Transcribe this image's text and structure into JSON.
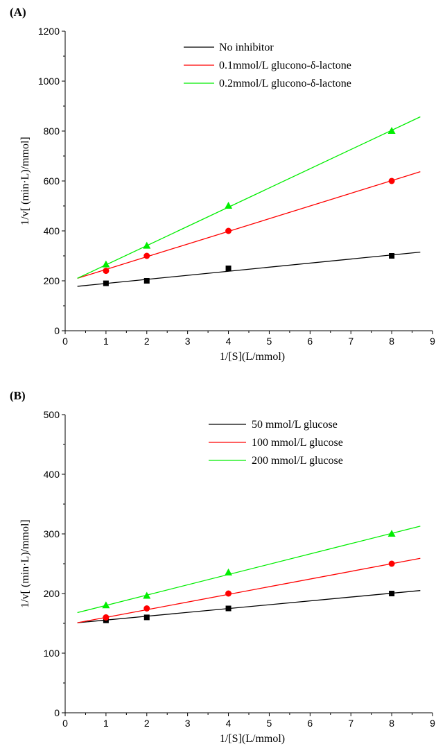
{
  "chart_data": [
    {
      "panel_label": "(A)",
      "type": "scatter",
      "xlabel": "1/[S](L/mmol)",
      "ylabel": "1/v[ (min·L)/mmol]",
      "xlim": [
        0,
        9
      ],
      "ylim": [
        0,
        1200
      ],
      "xticks": [
        0,
        1,
        2,
        3,
        4,
        5,
        6,
        7,
        8,
        9
      ],
      "yticks": [
        0,
        200,
        400,
        600,
        800,
        1000,
        1200
      ],
      "grid": false,
      "legend_position": "top-right",
      "series": [
        {
          "name": "No  inhibitor",
          "color": "#000000",
          "marker": "square",
          "x": [
            1,
            2,
            4,
            8
          ],
          "y": [
            190,
            200,
            250,
            300
          ],
          "fit": {
            "x": [
              0.3,
              8.7
            ],
            "y": [
              178,
              315
            ]
          }
        },
        {
          "name": "0.1mmol/L  glucono-δ-lactone",
          "color": "#ff0000",
          "marker": "circle",
          "x": [
            1,
            2,
            4,
            8
          ],
          "y": [
            240,
            300,
            400,
            600
          ],
          "fit": {
            "x": [
              0.3,
              8.7
            ],
            "y": [
              210,
              637
            ]
          }
        },
        {
          "name": "0.2mmol/L  glucono-δ-lactone",
          "color": "#00ee00",
          "marker": "triangle",
          "x": [
            1,
            2,
            4,
            8
          ],
          "y": [
            265,
            340,
            500,
            800
          ],
          "fit": {
            "x": [
              0.3,
              8.7
            ],
            "y": [
              210,
              857
            ]
          }
        }
      ]
    },
    {
      "panel_label": "(B)",
      "type": "scatter",
      "xlabel": "1/[S](L/mmol)",
      "ylabel": "1/v[ (min·L)/mmol]",
      "xlim": [
        0,
        9
      ],
      "ylim": [
        0,
        500
      ],
      "xticks": [
        0,
        1,
        2,
        3,
        4,
        5,
        6,
        7,
        8,
        9
      ],
      "yticks": [
        0,
        100,
        200,
        300,
        400,
        500
      ],
      "grid": false,
      "legend_position": "top-right",
      "series": [
        {
          "name": "50 mmol/L  glucose",
          "color": "#000000",
          "marker": "square",
          "x": [
            1,
            2,
            4,
            8
          ],
          "y": [
            155,
            160,
            175,
            200
          ],
          "fit": {
            "x": [
              0.3,
              8.7
            ],
            "y": [
              151,
              205
            ]
          }
        },
        {
          "name": "100 mmol/L glucose",
          "color": "#ff0000",
          "marker": "circle",
          "x": [
            1,
            2,
            4,
            8
          ],
          "y": [
            160,
            175,
            200,
            250
          ],
          "fit": {
            "x": [
              0.3,
              8.7
            ],
            "y": [
              151,
              259
            ]
          }
        },
        {
          "name": "200 mmol/L glucose",
          "color": "#00ee00",
          "marker": "triangle",
          "x": [
            1,
            2,
            4,
            8
          ],
          "y": [
            180,
            196,
            235,
            300
          ],
          "fit": {
            "x": [
              0.3,
              8.7
            ],
            "y": [
              168,
              313
            ]
          }
        }
      ]
    }
  ]
}
